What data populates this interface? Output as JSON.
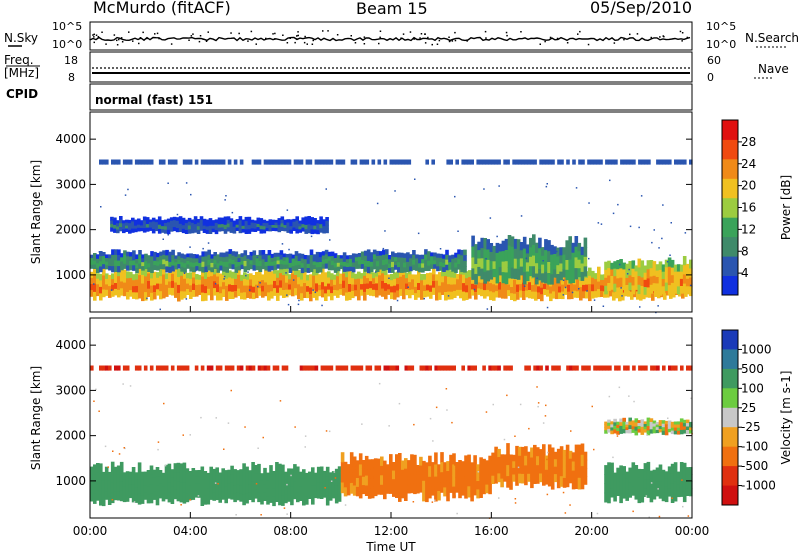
{
  "header": {
    "station": "McMurdo (fitACF)",
    "beam": "Beam 15",
    "date": "05/Sep/2010"
  },
  "strip_labels": {
    "nsky": "N.Sky",
    "freq_line1": "Freq.",
    "freq_line2": "[MHz]",
    "cpid": "CPID",
    "nsearch": "N.Search",
    "nave": "Nave",
    "cpid_value": "normal (fast) 151",
    "nsky_ticks": [
      "10^5",
      "10^0"
    ],
    "nsearch_ticks": [
      "10^5",
      "10^0"
    ],
    "freq_ticks": [
      "18",
      "8"
    ],
    "nave_ticks": [
      "60",
      "0"
    ]
  },
  "chart_data": [
    {
      "type": "heatmap",
      "panel": "power",
      "ylabel": "Slant Range [km]",
      "yticks": [
        1000,
        2000,
        3000,
        4000
      ],
      "ylim": [
        180,
        4600
      ],
      "xlabel": "",
      "colorbar": {
        "label": "Power [dB]",
        "ticks": [
          "4",
          "8",
          "12",
          "16",
          "20",
          "24",
          "28"
        ],
        "colors": [
          "#1030e0",
          "#2a55b0",
          "#3f8a6a",
          "#3aa35a",
          "#9ccc40",
          "#f0c020",
          "#f08a18",
          "#f04a10",
          "#e01010"
        ]
      },
      "bands": [
        {
          "t_start": 0.0,
          "t_end": 23.8,
          "range_min": 500,
          "range_max": 1100,
          "power_db": 26
        },
        {
          "t_start": 0.0,
          "t_end": 15.0,
          "range_min": 1100,
          "range_max": 1500,
          "power_db": 12
        },
        {
          "t_start": 0.8,
          "t_end": 9.5,
          "range_min": 1950,
          "range_max": 2250,
          "power_db": 6
        },
        {
          "t_start": 0.0,
          "t_end": 24.0,
          "range_min": 3450,
          "range_max": 3550,
          "power_db": 4
        },
        {
          "t_start": 15.2,
          "t_end": 19.8,
          "range_min": 900,
          "range_max": 1750,
          "power_db": 14
        },
        {
          "t_start": 20.5,
          "t_end": 24.0,
          "range_min": 600,
          "range_max": 1300,
          "power_db": 24
        }
      ]
    },
    {
      "type": "heatmap",
      "panel": "velocity",
      "ylabel": "Slant Range [km]",
      "yticks": [
        1000,
        2000,
        3000,
        4000
      ],
      "ylim": [
        180,
        4600
      ],
      "xlabel": "Time UT",
      "xticks": [
        "00:00",
        "04:00",
        "08:00",
        "12:00",
        "16:00",
        "20:00",
        "00:00"
      ],
      "xlim_hours": [
        0,
        24
      ],
      "colorbar": {
        "label": "Velocity [m s-1]",
        "ticks": [
          "1000",
          "500",
          "100",
          "25",
          "-25",
          "-100",
          "-500",
          "-1000"
        ],
        "colors": [
          "#1a3ab8",
          "#2e7a9a",
          "#3f9a60",
          "#6ccc40",
          "#c8c8c8",
          "#f0a020",
          "#f07010",
          "#e03010",
          "#d01010"
        ]
      },
      "bands": [
        {
          "t_start": 0.0,
          "t_end": 10.0,
          "range_min": 550,
          "range_max": 1300,
          "velocity": 300
        },
        {
          "t_start": 10.0,
          "t_end": 16.0,
          "range_min": 650,
          "range_max": 1500,
          "velocity": -200
        },
        {
          "t_start": 16.0,
          "t_end": 19.8,
          "range_min": 900,
          "range_max": 1700,
          "velocity": -200
        },
        {
          "t_start": 20.5,
          "t_end": 24.0,
          "range_min": 600,
          "range_max": 1300,
          "velocity": 300
        },
        {
          "t_start": 20.5,
          "t_end": 24.0,
          "range_min": 2050,
          "range_max": 2350,
          "velocity": 0
        },
        {
          "t_start": 0.0,
          "t_end": 24.0,
          "range_min": 3450,
          "range_max": 3550,
          "velocity": -900
        }
      ]
    }
  ]
}
